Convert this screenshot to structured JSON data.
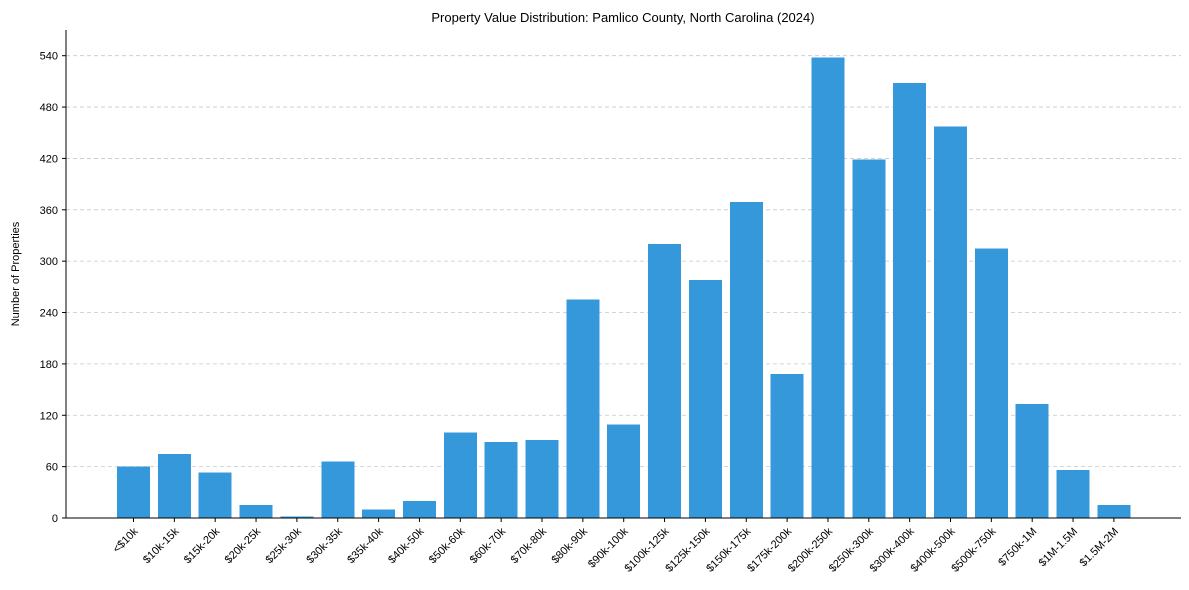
{
  "chart_data": {
    "type": "bar",
    "title": "Property Value Distribution: Pamlico County, North Carolina (2024)",
    "xlabel": "",
    "ylabel": "Number of Properties",
    "ylim": [
      0,
      570
    ],
    "yticks": [
      0,
      60,
      120,
      180,
      240,
      300,
      360,
      420,
      480,
      540
    ],
    "grid": true,
    "bar_color": "#3498db",
    "categories": [
      "<$10k",
      "$10k-15k",
      "$15k-20k",
      "$20k-25k",
      "$25k-30k",
      "$30k-35k",
      "$35k-40k",
      "$40k-50k",
      "$50k-60k",
      "$60k-70k",
      "$70k-80k",
      "$80k-90k",
      "$90k-100k",
      "$100k-125k",
      "$125k-150k",
      "$150k-175k",
      "$175k-200k",
      "$200k-250k",
      "$250k-300k",
      "$300k-400k",
      "$400k-500k",
      "$500k-750k",
      "$750k-1M",
      "$1M-1.5M",
      "$1.5M-2M"
    ],
    "values": [
      60,
      75,
      53,
      15,
      2,
      66,
      10,
      20,
      100,
      89,
      91,
      255,
      109,
      320,
      278,
      369,
      168,
      538,
      419,
      508,
      457,
      315,
      133,
      56,
      15
    ]
  }
}
